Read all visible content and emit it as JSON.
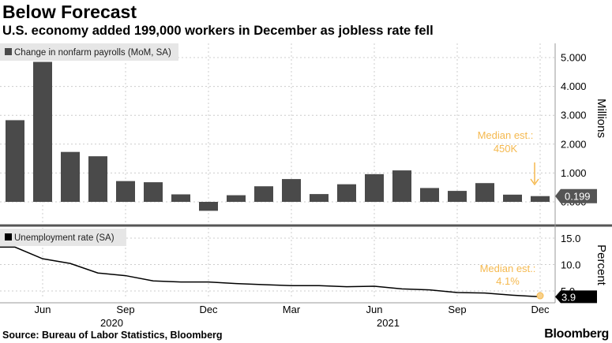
{
  "header": {
    "title": "Below Forecast",
    "subtitle": "U.S. economy added 199,000 workers in December as jobless rate fell"
  },
  "footer": {
    "source": "Source: Bureau of Labor Statistics, Bloomberg",
    "brand": "Bloomberg"
  },
  "colors": {
    "bar": "#4a4a4a",
    "line": "#000000",
    "annotation": "#f5b94f",
    "grid": "#cccccc",
    "divider": "#555555",
    "legend_bg": "#e6e6e6"
  },
  "chart_data": [
    {
      "type": "bar",
      "legend": "Change in nonfarm payrolls (MoM, SA)",
      "legend_placement": "top-left",
      "ylabel": "Millions",
      "y_ticks": [
        "5.000",
        "4.000",
        "3.000",
        "2.000",
        "1.000",
        "0.000"
      ],
      "ylim": [
        -0.35,
        5.35
      ],
      "grid": true,
      "categories": [
        "May 2020",
        "Jun 2020",
        "Jul 2020",
        "Aug 2020",
        "Sep 2020",
        "Oct 2020",
        "Nov 2020",
        "Dec 2020",
        "Jan 2021",
        "Feb 2021",
        "Mar 2021",
        "Apr 2021",
        "May 2021",
        "Jun 2021",
        "Jul 2021",
        "Aug 2021",
        "Sep 2021",
        "Oct 2021",
        "Nov 2021",
        "Dec 2021"
      ],
      "values": [
        2.83,
        4.85,
        1.73,
        1.58,
        0.72,
        0.68,
        0.26,
        -0.31,
        0.23,
        0.54,
        0.79,
        0.27,
        0.61,
        0.96,
        1.09,
        0.48,
        0.38,
        0.65,
        0.25,
        0.199
      ],
      "last_value_label": "0.199",
      "annotation": {
        "lines": [
          "Median est.:",
          "450K"
        ],
        "value": 0.45
      }
    },
    {
      "type": "line",
      "legend": "Unemployment rate (SA)",
      "legend_placement": "top-left",
      "ylabel": "Percent",
      "y_ticks": [
        "15.0",
        "10.0",
        "5.0"
      ],
      "ylim": [
        3.2,
        17.5
      ],
      "grid": true,
      "x": [
        "May 2020",
        "Jun 2020",
        "Jul 2020",
        "Aug 2020",
        "Sep 2020",
        "Oct 2020",
        "Nov 2020",
        "Dec 2020",
        "Jan 2021",
        "Feb 2021",
        "Mar 2021",
        "Apr 2021",
        "May 2021",
        "Jun 2021",
        "Jul 2021",
        "Aug 2021",
        "Sep 2021",
        "Oct 2021",
        "Nov 2021",
        "Dec 2021"
      ],
      "values": [
        13.3,
        11.1,
        10.2,
        8.4,
        7.9,
        6.9,
        6.7,
        6.7,
        6.4,
        6.2,
        6.0,
        6.0,
        5.8,
        5.9,
        5.4,
        5.2,
        4.7,
        4.6,
        4.2,
        3.9
      ],
      "last_value_label": "3.9",
      "annotation": {
        "lines": [
          "Median est.:",
          "4.1%"
        ],
        "value": 4.1
      }
    }
  ],
  "x_axis": {
    "ticks": [
      {
        "label": "Jun",
        "index": 1
      },
      {
        "label": "Sep",
        "index": 4
      },
      {
        "label": "Dec",
        "index": 7
      },
      {
        "label": "Mar",
        "index": 10
      },
      {
        "label": "Jun",
        "index": 13
      },
      {
        "label": "Sep",
        "index": 16
      },
      {
        "label": "Dec",
        "index": 19
      }
    ],
    "years": [
      {
        "label": "2020",
        "index": 3.5
      },
      {
        "label": "2021",
        "index": 13.5
      }
    ]
  }
}
